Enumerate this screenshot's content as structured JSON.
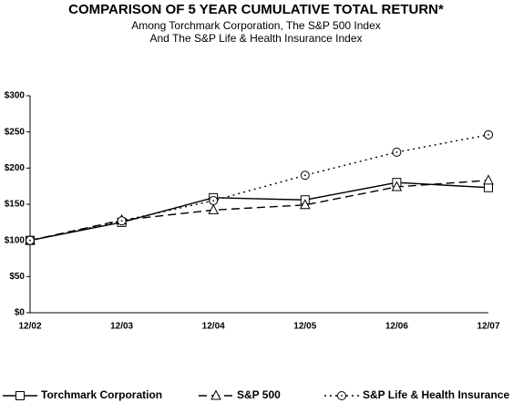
{
  "chart_data": {
    "type": "line",
    "title": "COMPARISON OF 5 YEAR CUMULATIVE TOTAL RETURN*",
    "subtitle": [
      "Among Torchmark Corporation, The S&P 500 Index",
      "And The S&P Life & Health Insurance Index"
    ],
    "categories": [
      "12/02",
      "12/03",
      "12/04",
      "12/05",
      "12/06",
      "12/07"
    ],
    "series": [
      {
        "name": "Torchmark Corporation",
        "color": "#000000",
        "marker": "square",
        "dash": "solid",
        "values": [
          100,
          125,
          159,
          156,
          180,
          173
        ]
      },
      {
        "name": "S&P 500",
        "color": "#000000",
        "marker": "triangle",
        "dash": "dashed",
        "values": [
          100,
          128,
          142,
          149,
          174,
          183
        ]
      },
      {
        "name": "S&P Life & Health Insurance",
        "color": "#000000",
        "marker": "circle",
        "dash": "dotted",
        "values": [
          100,
          127,
          155,
          190,
          222,
          246
        ]
      }
    ],
    "ylim": [
      0,
      300
    ],
    "yticks": [
      {
        "value": 0,
        "label": "$0"
      },
      {
        "value": 50,
        "label": "$50"
      },
      {
        "value": 100,
        "label": "$100"
      },
      {
        "value": 150,
        "label": "$150"
      },
      {
        "value": 200,
        "label": "$200"
      },
      {
        "value": 250,
        "label": "$250"
      },
      {
        "value": 300,
        "label": "$300"
      }
    ],
    "legend": "bottom"
  }
}
